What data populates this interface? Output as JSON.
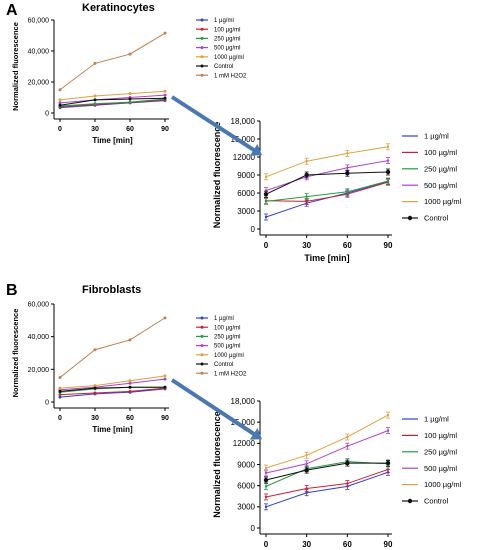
{
  "panels": [
    {
      "letter": "A",
      "title": "Keratinocytes"
    },
    {
      "letter": "B",
      "title": "Fibroblasts"
    }
  ],
  "colors": {
    "1 µg/ml": "#3040d0",
    "100 µg/ml": "#d02030",
    "250 µg/ml": "#20a040",
    "500 µg/ml": "#b040d0",
    "1000 µg/ml": "#e0a040",
    "Control": "#101010",
    "1 mM H2O2": "#c08050",
    "arrow": "#4a78b0"
  },
  "chart_data": [
    {
      "type": "line",
      "panel": "A",
      "title": "Keratinocytes",
      "xlabel": "Time [min]",
      "ylabel": "Normalized fluorescence",
      "x": [
        0,
        30,
        60,
        90
      ],
      "ylim": [
        0,
        60000
      ],
      "yticks": [
        "0",
        "20,000",
        "40,000",
        "60,000"
      ],
      "legend": "right",
      "series": [
        {
          "name": "1 µg/ml",
          "values": [
            3500,
            5000,
            6500,
            8000
          ]
        },
        {
          "name": "100 µg/ml",
          "values": [
            4000,
            5500,
            6800,
            8500
          ]
        },
        {
          "name": "250 µg/ml",
          "values": [
            4500,
            6000,
            7000,
            9000
          ]
        },
        {
          "name": "500 µg/ml",
          "values": [
            6500,
            8500,
            10000,
            11500
          ]
        },
        {
          "name": "1000 µg/ml",
          "values": [
            8500,
            11000,
            12500,
            14000
          ]
        },
        {
          "name": "Control",
          "values": [
            5000,
            8500,
            9000,
            9500
          ]
        },
        {
          "name": "1 mM H2O2",
          "values": [
            15000,
            32000,
            38000,
            51500
          ]
        }
      ]
    },
    {
      "type": "line",
      "panel": "A",
      "title": "",
      "xlabel": "Time [min]",
      "ylabel": "Normalized fluorescence",
      "x": [
        0,
        30,
        60,
        90
      ],
      "ylim": [
        0,
        18000
      ],
      "yticks": [
        "0",
        "3000",
        "6000",
        "9000",
        "12000",
        "15,000",
        "18,000"
      ],
      "legend": "right",
      "series": [
        {
          "name": "1 µg/ml",
          "values": [
            2000,
            4300,
            6000,
            7900
          ]
        },
        {
          "name": "100 µg/ml",
          "values": [
            4700,
            4600,
            5800,
            7800
          ]
        },
        {
          "name": "250 µg/ml",
          "values": [
            4600,
            5400,
            6200,
            8000
          ]
        },
        {
          "name": "500 µg/ml",
          "values": [
            6400,
            8700,
            10200,
            11400
          ]
        },
        {
          "name": "1000 µg/ml",
          "values": [
            8700,
            11300,
            12600,
            13700
          ]
        },
        {
          "name": "Control",
          "values": [
            5800,
            9000,
            9300,
            9500
          ]
        }
      ]
    },
    {
      "type": "line",
      "panel": "B",
      "title": "Fibroblasts",
      "xlabel": "Time [min]",
      "ylabel": "Normalized fluorescence",
      "x": [
        0,
        30,
        60,
        90
      ],
      "ylim": [
        0,
        60000
      ],
      "yticks": [
        "0",
        "20,000",
        "40,000",
        "60,000"
      ],
      "legend": "right",
      "series": [
        {
          "name": "1 µg/ml",
          "values": [
            3000,
            5000,
            6000,
            8000
          ]
        },
        {
          "name": "100 µg/ml",
          "values": [
            4500,
            5500,
            6500,
            8500
          ]
        },
        {
          "name": "250 µg/ml",
          "values": [
            6000,
            8000,
            9000,
            9000
          ]
        },
        {
          "name": "500 µg/ml",
          "values": [
            7500,
            9000,
            11500,
            14000
          ]
        },
        {
          "name": "1000 µg/ml",
          "values": [
            8500,
            10000,
            13000,
            16000
          ]
        },
        {
          "name": "Control",
          "values": [
            6500,
            8500,
            9000,
            9000
          ]
        },
        {
          "name": "1 mM H2O2",
          "values": [
            15000,
            32000,
            38000,
            51500
          ]
        }
      ]
    },
    {
      "type": "line",
      "panel": "B",
      "title": "",
      "xlabel": "Time [min]",
      "ylabel": "Normalized fluorescence",
      "x": [
        0,
        30,
        60,
        90
      ],
      "ylim": [
        0,
        18000
      ],
      "yticks": [
        "0",
        "3000",
        "6000",
        "9000",
        "12000",
        "15,000",
        "18,000"
      ],
      "legend": "right",
      "series": [
        {
          "name": "1 µg/ml",
          "values": [
            3000,
            5000,
            5900,
            7900
          ]
        },
        {
          "name": "100 µg/ml",
          "values": [
            4400,
            5600,
            6300,
            8300
          ]
        },
        {
          "name": "250 µg/ml",
          "values": [
            5900,
            8400,
            9400,
            9100
          ]
        },
        {
          "name": "500 µg/ml",
          "values": [
            7800,
            9100,
            11600,
            13800
          ]
        },
        {
          "name": "1000 µg/ml",
          "values": [
            8500,
            10300,
            12900,
            16000
          ]
        },
        {
          "name": "Control",
          "values": [
            6800,
            8200,
            9200,
            9200
          ]
        }
      ]
    }
  ]
}
